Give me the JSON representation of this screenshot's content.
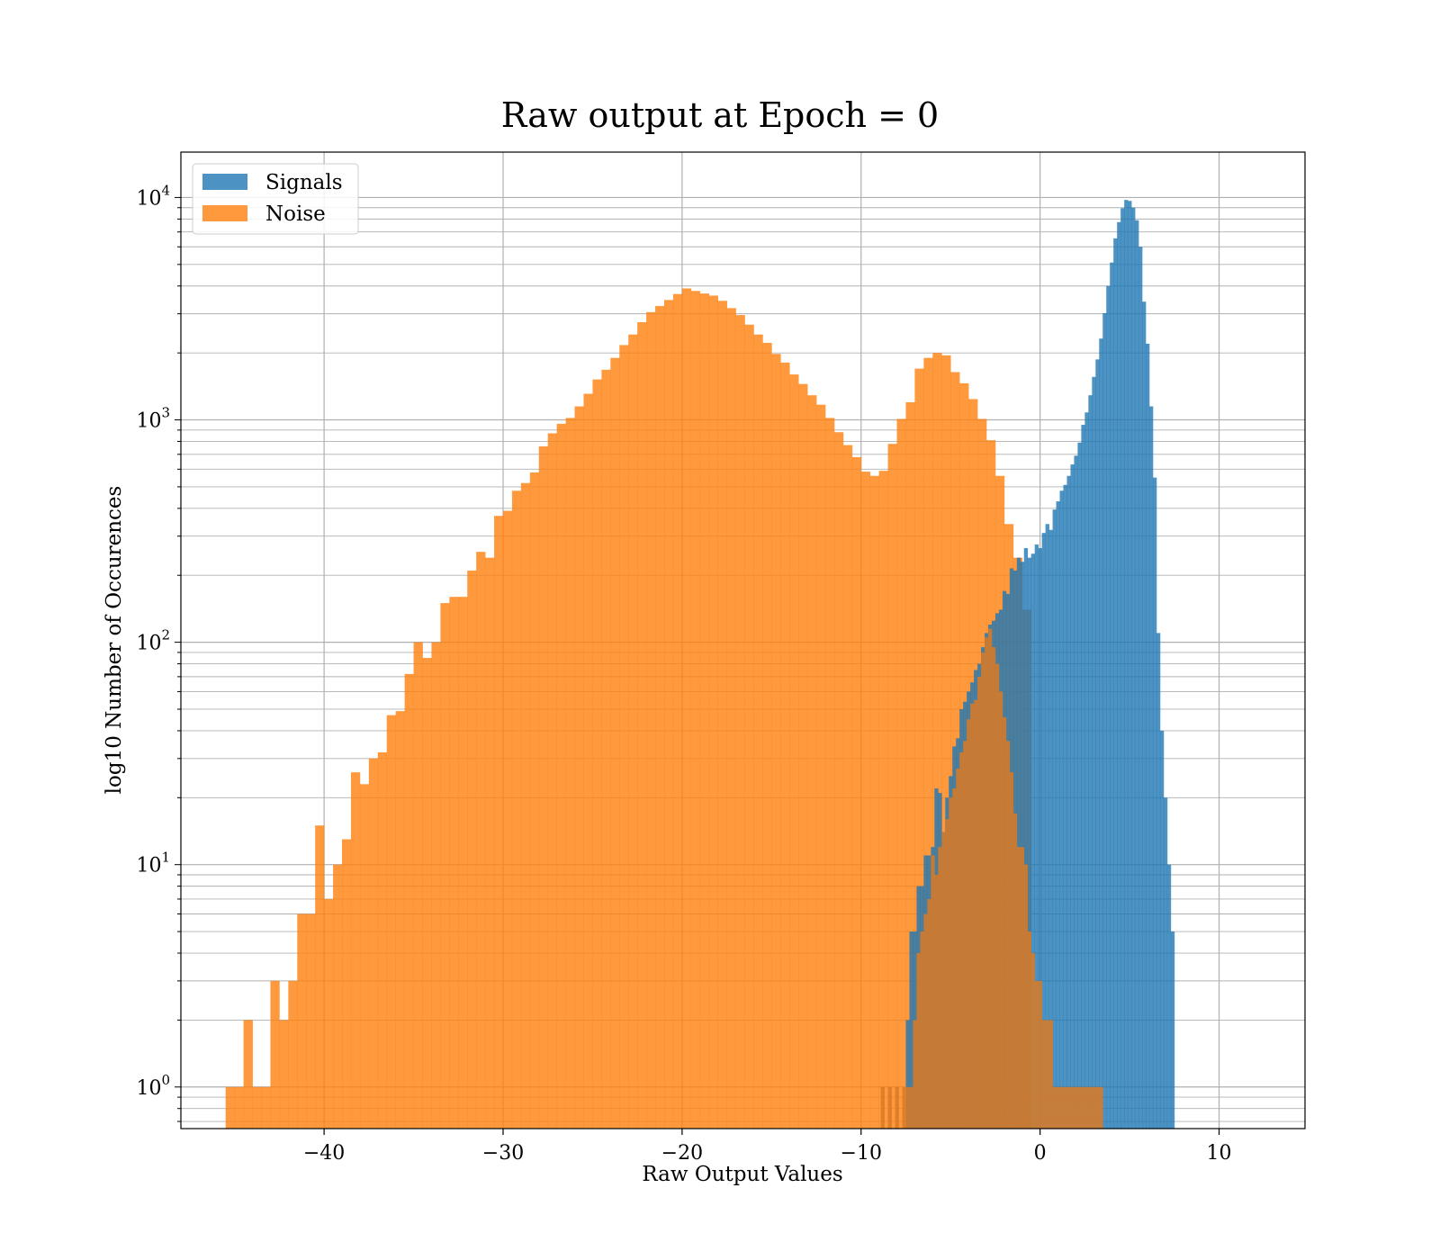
{
  "chart_data": {
    "type": "bar",
    "title": "Raw output at Epoch = 0",
    "xlabel": "Raw Output Values",
    "ylabel": "log10 Number of Occurences",
    "xlim": [
      -48,
      14.8
    ],
    "ylim": [
      0.65,
      16000
    ],
    "yscale": "log",
    "grid": true,
    "legend_position": "top-left",
    "x_ticks": [
      {
        "value": -40,
        "label": "−40"
      },
      {
        "value": -30,
        "label": "−30"
      },
      {
        "value": -20,
        "label": "−20"
      },
      {
        "value": -10,
        "label": "−10"
      },
      {
        "value": 0,
        "label": "0"
      },
      {
        "value": 10,
        "label": "10"
      }
    ],
    "y_ticks": [
      {
        "value": 1,
        "base": "10",
        "exp": "0"
      },
      {
        "value": 10,
        "base": "10",
        "exp": "1"
      },
      {
        "value": 100,
        "base": "10",
        "exp": "2"
      },
      {
        "value": 1000,
        "base": "10",
        "exp": "3"
      },
      {
        "value": 10000,
        "base": "10",
        "exp": "4"
      }
    ],
    "series": [
      {
        "name": "Noise",
        "color": "#ff7f0e",
        "bin_start": -45.5,
        "bin_width": 0.5,
        "values": [
          1,
          1,
          2,
          1,
          1,
          3,
          2,
          3,
          6,
          6,
          15,
          7,
          10,
          13,
          26,
          23,
          30,
          32,
          47,
          49,
          72,
          100,
          85,
          100,
          150,
          160,
          160,
          210,
          255,
          240,
          370,
          390,
          480,
          520,
          580,
          760,
          870,
          960,
          1020,
          1150,
          1310,
          1520,
          1680,
          1900,
          2170,
          2420,
          2750,
          3050,
          3250,
          3460,
          3680,
          3900,
          3800,
          3700,
          3620,
          3430,
          3180,
          2960,
          2680,
          2420,
          2220,
          1980,
          1810,
          1600,
          1450,
          1290,
          1170,
          1020,
          880,
          770,
          680,
          585,
          560,
          590,
          780,
          1010,
          1200,
          1700,
          1900,
          2000,
          1950,
          1640,
          1460,
          1240,
          1010,
          810,
          560,
          340,
          240,
          140
        ]
      },
      {
        "name": "Signals",
        "color": "#1f77b4",
        "bin_start": -7.5,
        "bin_width": 0.2,
        "values": [
          2,
          5,
          5,
          8,
          8,
          11,
          11,
          12,
          22,
          21,
          14,
          20,
          25,
          34,
          37,
          50,
          54,
          60,
          66,
          75,
          80,
          95,
          110,
          120,
          125,
          135,
          140,
          170,
          165,
          215,
          210,
          240,
          230,
          265,
          240,
          250,
          275,
          265,
          310,
          340,
          320,
          395,
          430,
          480,
          510,
          560,
          630,
          690,
          790,
          950,
          1080,
          1290,
          1560,
          1870,
          2320,
          3020,
          4000,
          5100,
          6550,
          7750,
          8950,
          9750,
          9650,
          9000,
          7900,
          6000,
          3400,
          2200,
          1150,
          550,
          110,
          40,
          20,
          10,
          5
        ]
      },
      {
        "name": "",
        "color": "#d97a26",
        "bin_start": -8.9,
        "bin_width": 0.2,
        "values": [
          1,
          0,
          1,
          0,
          1,
          0,
          1,
          1,
          1,
          2,
          4,
          5,
          6,
          7,
          11,
          9,
          12,
          14,
          16,
          20,
          22,
          27,
          32,
          36,
          45,
          53,
          55,
          70,
          90,
          105,
          115,
          95,
          80,
          60,
          46,
          36,
          26,
          17,
          12,
          12,
          10,
          5,
          4,
          3,
          3,
          2,
          2,
          2,
          1,
          1,
          1,
          1,
          1,
          1,
          1,
          1,
          1,
          1,
          1,
          1,
          1,
          1
        ]
      }
    ]
  }
}
